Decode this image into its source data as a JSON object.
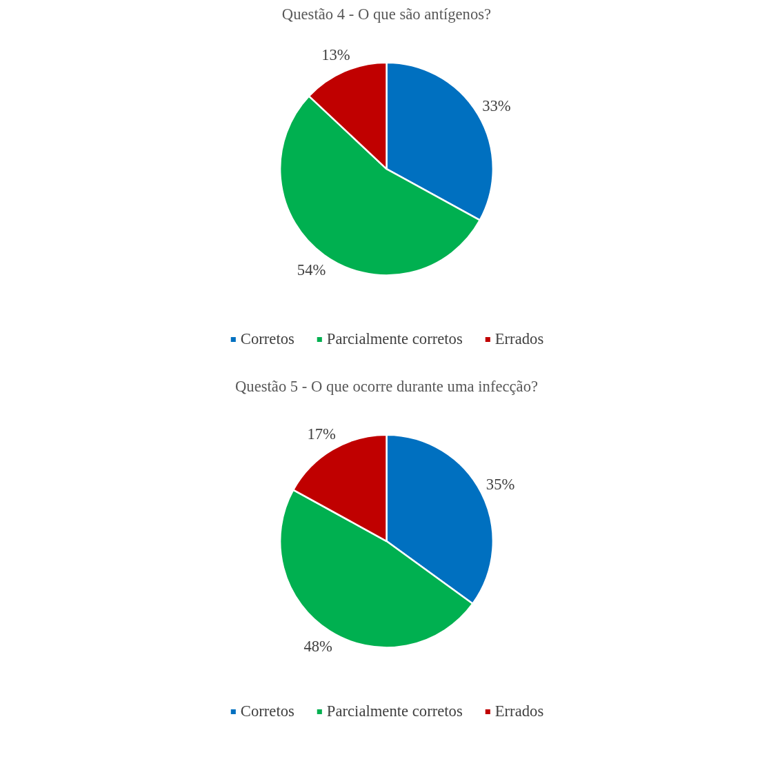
{
  "chart_data": [
    {
      "type": "pie",
      "title": "Questão 4 - O que são antígenos?",
      "categories": [
        "Corretos",
        "Parcialmente corretos",
        "Errados"
      ],
      "values": [
        33,
        54,
        13
      ],
      "value_labels": [
        "33%",
        "54%",
        "13%"
      ],
      "colors": [
        "#0070c0",
        "#00b050",
        "#c00000"
      ],
      "legend": "bottom"
    },
    {
      "type": "pie",
      "title": "Questão 5 - O que ocorre durante uma infecção?",
      "categories": [
        "Corretos",
        "Parcialmente corretos",
        "Errados"
      ],
      "values": [
        35,
        48,
        17
      ],
      "value_labels": [
        "35%",
        "48%",
        "17%"
      ],
      "colors": [
        "#0070c0",
        "#00b050",
        "#c00000"
      ],
      "legend": "bottom"
    }
  ]
}
